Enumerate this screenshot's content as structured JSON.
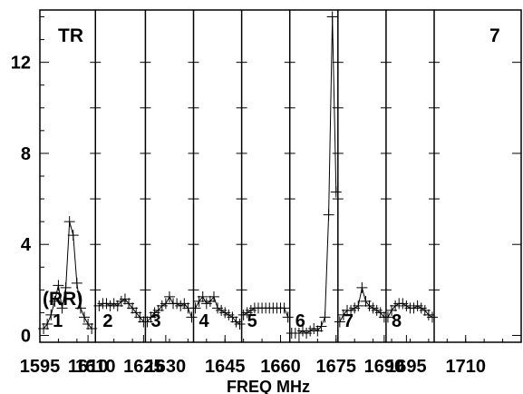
{
  "chart_data": {
    "type": "line",
    "title": "",
    "xlabel": "FREQ MHz",
    "ylabel": "",
    "ylim": [
      -0.3,
      14.3
    ],
    "xlim": [
      1595,
      1725
    ],
    "y_ticks": [
      0,
      4,
      8,
      12
    ],
    "y_tick_labels": [
      "0",
      "4",
      "8",
      "12"
    ],
    "x_tick_labels": [
      "1595",
      "1610",
      "1610",
      "1625",
      "1630",
      "1645",
      "1660",
      "1675",
      "1690",
      "1695",
      "1710"
    ],
    "annotations": [
      "TR",
      "7",
      "(RR)"
    ],
    "panel_dividers": [
      1610,
      1623.5,
      1636.5,
      1649.5,
      1662.5,
      1675.5,
      1688.5,
      1701.5
    ],
    "panels": [
      {
        "label": "1",
        "x": [
          1596,
          1597,
          1598,
          1599,
          1600,
          1601,
          1602,
          1603,
          1604,
          1605,
          1606,
          1607,
          1608,
          1609
        ],
        "y": [
          0.3,
          0.5,
          0.9,
          1.5,
          2.2,
          1.2,
          2.1,
          5.0,
          4.4,
          2.3,
          1.2,
          0.8,
          0.5,
          0.3
        ]
      },
      {
        "label": "2",
        "x": [
          1611,
          1612,
          1613,
          1614,
          1615,
          1616,
          1617,
          1618,
          1619,
          1620,
          1621,
          1622,
          1623
        ],
        "y": [
          1.3,
          1.4,
          1.4,
          1.3,
          1.4,
          1.3,
          1.5,
          1.6,
          1.4,
          1.2,
          1.0,
          0.8,
          0.6
        ]
      },
      {
        "label": "3",
        "x": [
          1624,
          1625,
          1626,
          1627,
          1628,
          1629,
          1630,
          1631,
          1632,
          1633,
          1634,
          1635,
          1636
        ],
        "y": [
          0.6,
          0.8,
          1.0,
          1.1,
          1.3,
          1.4,
          1.7,
          1.4,
          1.4,
          1.3,
          1.4,
          1.2,
          0.8
        ]
      },
      {
        "label": "4",
        "x": [
          1637,
          1638,
          1639,
          1640,
          1641,
          1642,
          1643,
          1644,
          1645,
          1646,
          1647,
          1648,
          1649
        ],
        "y": [
          1.2,
          1.5,
          1.7,
          1.4,
          1.5,
          1.7,
          1.2,
          1.1,
          1.0,
          0.9,
          0.8,
          0.6,
          0.5
        ]
      },
      {
        "label": "5",
        "x": [
          1650,
          1651,
          1652,
          1653,
          1654,
          1655,
          1656,
          1657,
          1658,
          1659,
          1660,
          1661,
          1662
        ],
        "y": [
          0.9,
          1.0,
          1.1,
          1.2,
          1.2,
          1.2,
          1.2,
          1.2,
          1.2,
          1.2,
          1.2,
          1.2,
          0.8
        ]
      },
      {
        "label": "6",
        "x": [
          1663,
          1664,
          1665,
          1666,
          1667,
          1668,
          1669,
          1670,
          1671,
          1672,
          1673,
          1674,
          1675
        ],
        "y": [
          0.1,
          0.1,
          0.1,
          0.2,
          0.1,
          0.2,
          0.3,
          0.2,
          0.4,
          0.8,
          5.3,
          14.0,
          6.3
        ]
      },
      {
        "label": "7",
        "x": [
          1676,
          1677,
          1678,
          1679,
          1680,
          1681,
          1682,
          1683,
          1684,
          1685,
          1686,
          1687,
          1688
        ],
        "y": [
          0.6,
          0.9,
          1.1,
          1.1,
          1.2,
          1.3,
          2.1,
          1.5,
          1.3,
          1.2,
          1.1,
          1.0,
          0.8
        ]
      },
      {
        "label": "8",
        "x": [
          1689,
          1690,
          1691,
          1692,
          1693,
          1694,
          1695,
          1696,
          1697,
          1698,
          1699,
          1700,
          1701
        ],
        "y": [
          0.8,
          1.1,
          1.3,
          1.4,
          1.4,
          1.3,
          1.2,
          1.2,
          1.3,
          1.2,
          1.1,
          0.9,
          0.8
        ]
      }
    ]
  }
}
